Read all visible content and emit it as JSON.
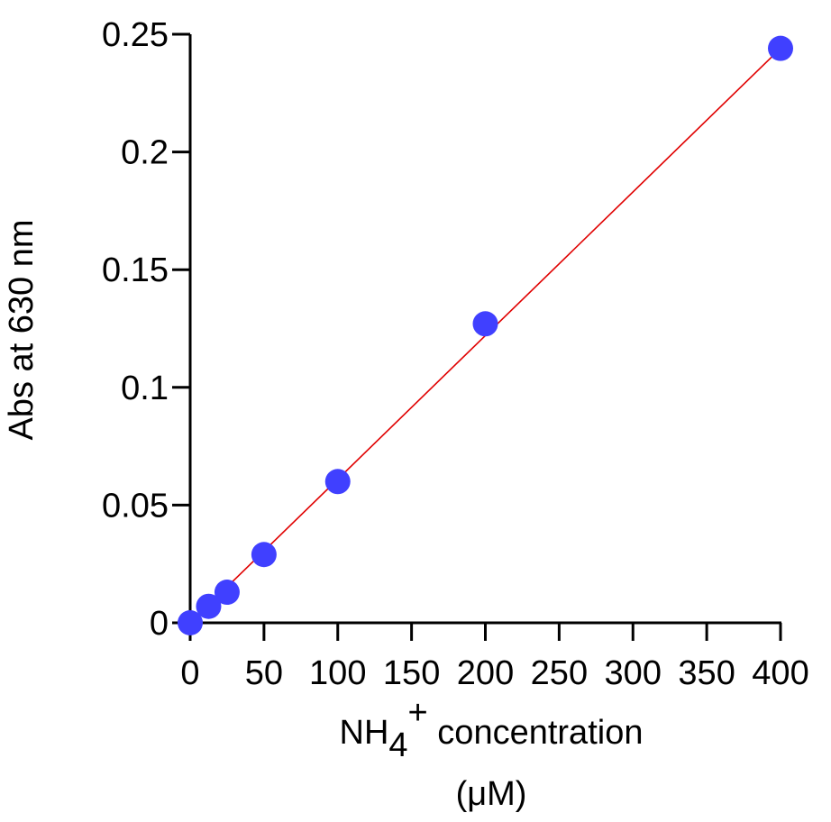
{
  "chart_data": {
    "type": "scatter",
    "title": "",
    "xlabel": {
      "main": "NH",
      "subscript": "4",
      "superscript": "+",
      "rest": " concentration",
      "unit": "(μM)"
    },
    "ylabel": "Abs at 630 nm",
    "xlim": [
      0,
      400
    ],
    "ylim": [
      0,
      0.25
    ],
    "xticks": [
      0,
      50,
      100,
      150,
      200,
      250,
      300,
      350,
      400
    ],
    "xtick_labels": [
      "0",
      "50",
      "100",
      "150",
      "200",
      "250",
      "300",
      "350",
      "400"
    ],
    "yticks": [
      0,
      0.05,
      0.1,
      0.15,
      0.2,
      0.25
    ],
    "ytick_labels": [
      "0",
      "0.05",
      "0.1",
      "0.15",
      "0.2",
      "0.25"
    ],
    "grid": false,
    "series": [
      {
        "values_x": [
          0,
          12.5,
          25,
          50,
          100,
          200,
          400
        ],
        "values_y": [
          0.0,
          0.007,
          0.013,
          0.029,
          0.06,
          0.127,
          0.244
        ],
        "marker_color": "#4040ff"
      }
    ],
    "fit_line": {
      "x": [
        0,
        400
      ],
      "y": [
        0.0,
        0.244
      ],
      "color": "#e00000"
    }
  }
}
